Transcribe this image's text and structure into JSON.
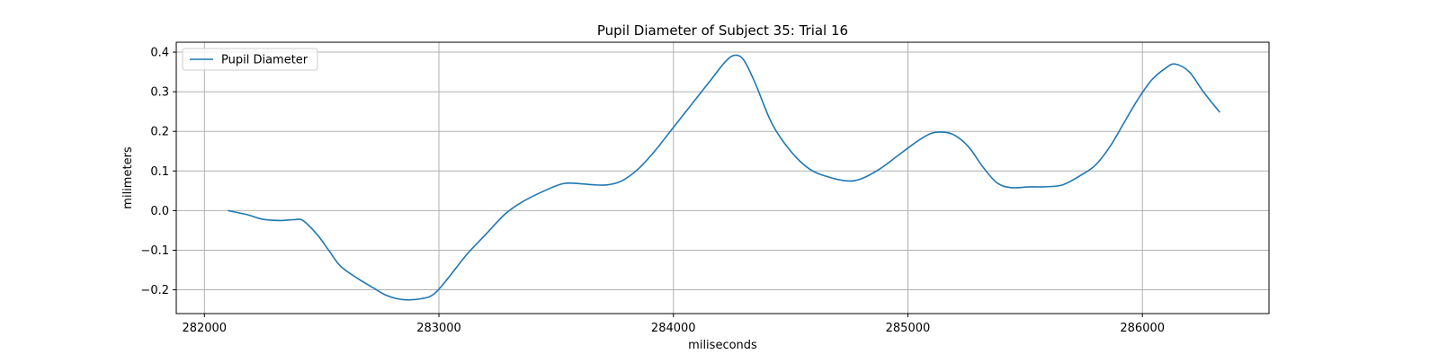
{
  "chart_data": {
    "type": "line",
    "title": "Pupil Diameter of Subject 35: Trial 16",
    "xlabel": "miliseconds",
    "ylabel": "milimeters",
    "xlim": [
      281880,
      286540
    ],
    "ylim": [
      -0.26,
      0.425
    ],
    "xticks": [
      282000,
      283000,
      284000,
      285000,
      286000
    ],
    "xtick_labels": [
      "282000",
      "283000",
      "284000",
      "285000",
      "286000"
    ],
    "yticks": [
      -0.2,
      -0.1,
      0.0,
      0.1,
      0.2,
      0.3,
      0.4
    ],
    "ytick_labels": [
      "−0.2",
      "−0.1",
      "0.0",
      "0.1",
      "0.2",
      "0.3",
      "0.4"
    ],
    "grid": true,
    "legend": {
      "position": "upper-left",
      "entries": [
        "Pupil Diameter"
      ]
    },
    "series": [
      {
        "name": "Pupil Diameter",
        "color": "#1f77b4",
        "x": [
          282100,
          282180,
          282250,
          282320,
          282380,
          282420,
          282480,
          282530,
          282580,
          282650,
          282720,
          282780,
          282850,
          282930,
          282980,
          283040,
          283120,
          283200,
          283280,
          283350,
          283450,
          283530,
          283600,
          283660,
          283720,
          283780,
          283850,
          283920,
          284000,
          284080,
          284160,
          284220,
          284260,
          284300,
          284350,
          284420,
          284500,
          284580,
          284660,
          284740,
          284800,
          284880,
          284960,
          285040,
          285100,
          285150,
          285200,
          285260,
          285320,
          285380,
          285440,
          285520,
          285580,
          285660,
          285740,
          285800,
          285860,
          285920,
          285980,
          286040,
          286100,
          286140,
          286200,
          286260,
          286330
        ],
        "y": [
          0.0,
          -0.01,
          -0.022,
          -0.025,
          -0.023,
          -0.025,
          -0.06,
          -0.1,
          -0.14,
          -0.17,
          -0.195,
          -0.215,
          -0.225,
          -0.222,
          -0.21,
          -0.17,
          -0.11,
          -0.06,
          -0.01,
          0.02,
          0.05,
          0.068,
          0.068,
          0.065,
          0.065,
          0.075,
          0.105,
          0.15,
          0.21,
          0.27,
          0.33,
          0.375,
          0.392,
          0.38,
          0.32,
          0.22,
          0.15,
          0.105,
          0.085,
          0.075,
          0.08,
          0.105,
          0.14,
          0.175,
          0.195,
          0.198,
          0.19,
          0.16,
          0.11,
          0.07,
          0.058,
          0.06,
          0.06,
          0.065,
          0.09,
          0.115,
          0.16,
          0.22,
          0.28,
          0.33,
          0.36,
          0.37,
          0.35,
          0.3,
          0.248
        ]
      }
    ]
  }
}
